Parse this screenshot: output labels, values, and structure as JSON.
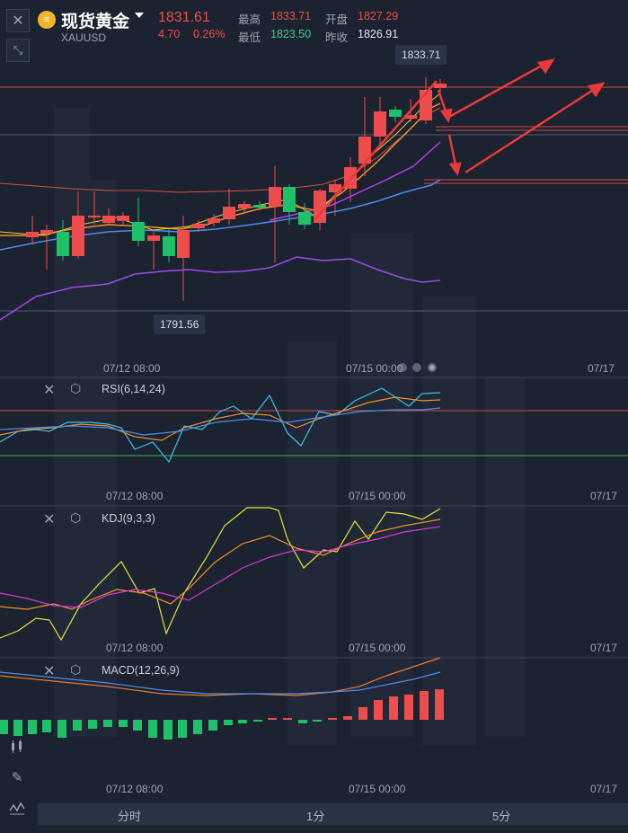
{
  "header": {
    "title": "现货黄金",
    "symbol": "XAUUSD",
    "logo_text": "≡",
    "price": "1831.61",
    "change": "4.70",
    "change_pct": "0.26%",
    "high_label": "最高",
    "high": "1833.71",
    "open_label": "开盘",
    "open": "1827.29",
    "low_label": "最低",
    "low": "1823.50",
    "prev_close_label": "昨收",
    "prev_close": "1826.91"
  },
  "main_chart": {
    "high_marker": "1833.71",
    "low_marker": "1791.56",
    "time_labels": [
      "07/12 08:00",
      "07/15 00:00",
      "07/17"
    ]
  },
  "rsi": {
    "title": "RSI(6,14,24)",
    "time_labels": [
      "07/12 08:00",
      "07/15 00:00",
      "07/17"
    ]
  },
  "kdj": {
    "title": "KDJ(9,3,3)",
    "time_labels": [
      "07/12 08:00",
      "07/15 00:00",
      "07/17"
    ]
  },
  "macd": {
    "title": "MACD(12,26,9)",
    "time_labels": [
      "07/12 08:00",
      "07/15 00:00",
      "07/17"
    ]
  },
  "tabs": [
    "分时",
    "1分",
    "5分"
  ],
  "icons": {
    "close": "close-icon",
    "collapse": "collapse-arrows-icon",
    "settings": "hexagon-settings-icon",
    "candles": "candlestick-icon",
    "pencil": "pencil-icon",
    "indicator": "indicator-wave-icon"
  },
  "colors": {
    "up": "#ef4d4d",
    "down": "#1ec06a",
    "ma_orange": "#f0912a",
    "ma_yellow": "#e8d13a",
    "ma_blue": "#4a8df0",
    "ma_purple": "#a049e8",
    "rsi_cyan": "#36c6e8",
    "kdj_k": "#f0912a",
    "kdj_d": "#d43ad4",
    "kdj_j": "#e8e23a"
  }
}
